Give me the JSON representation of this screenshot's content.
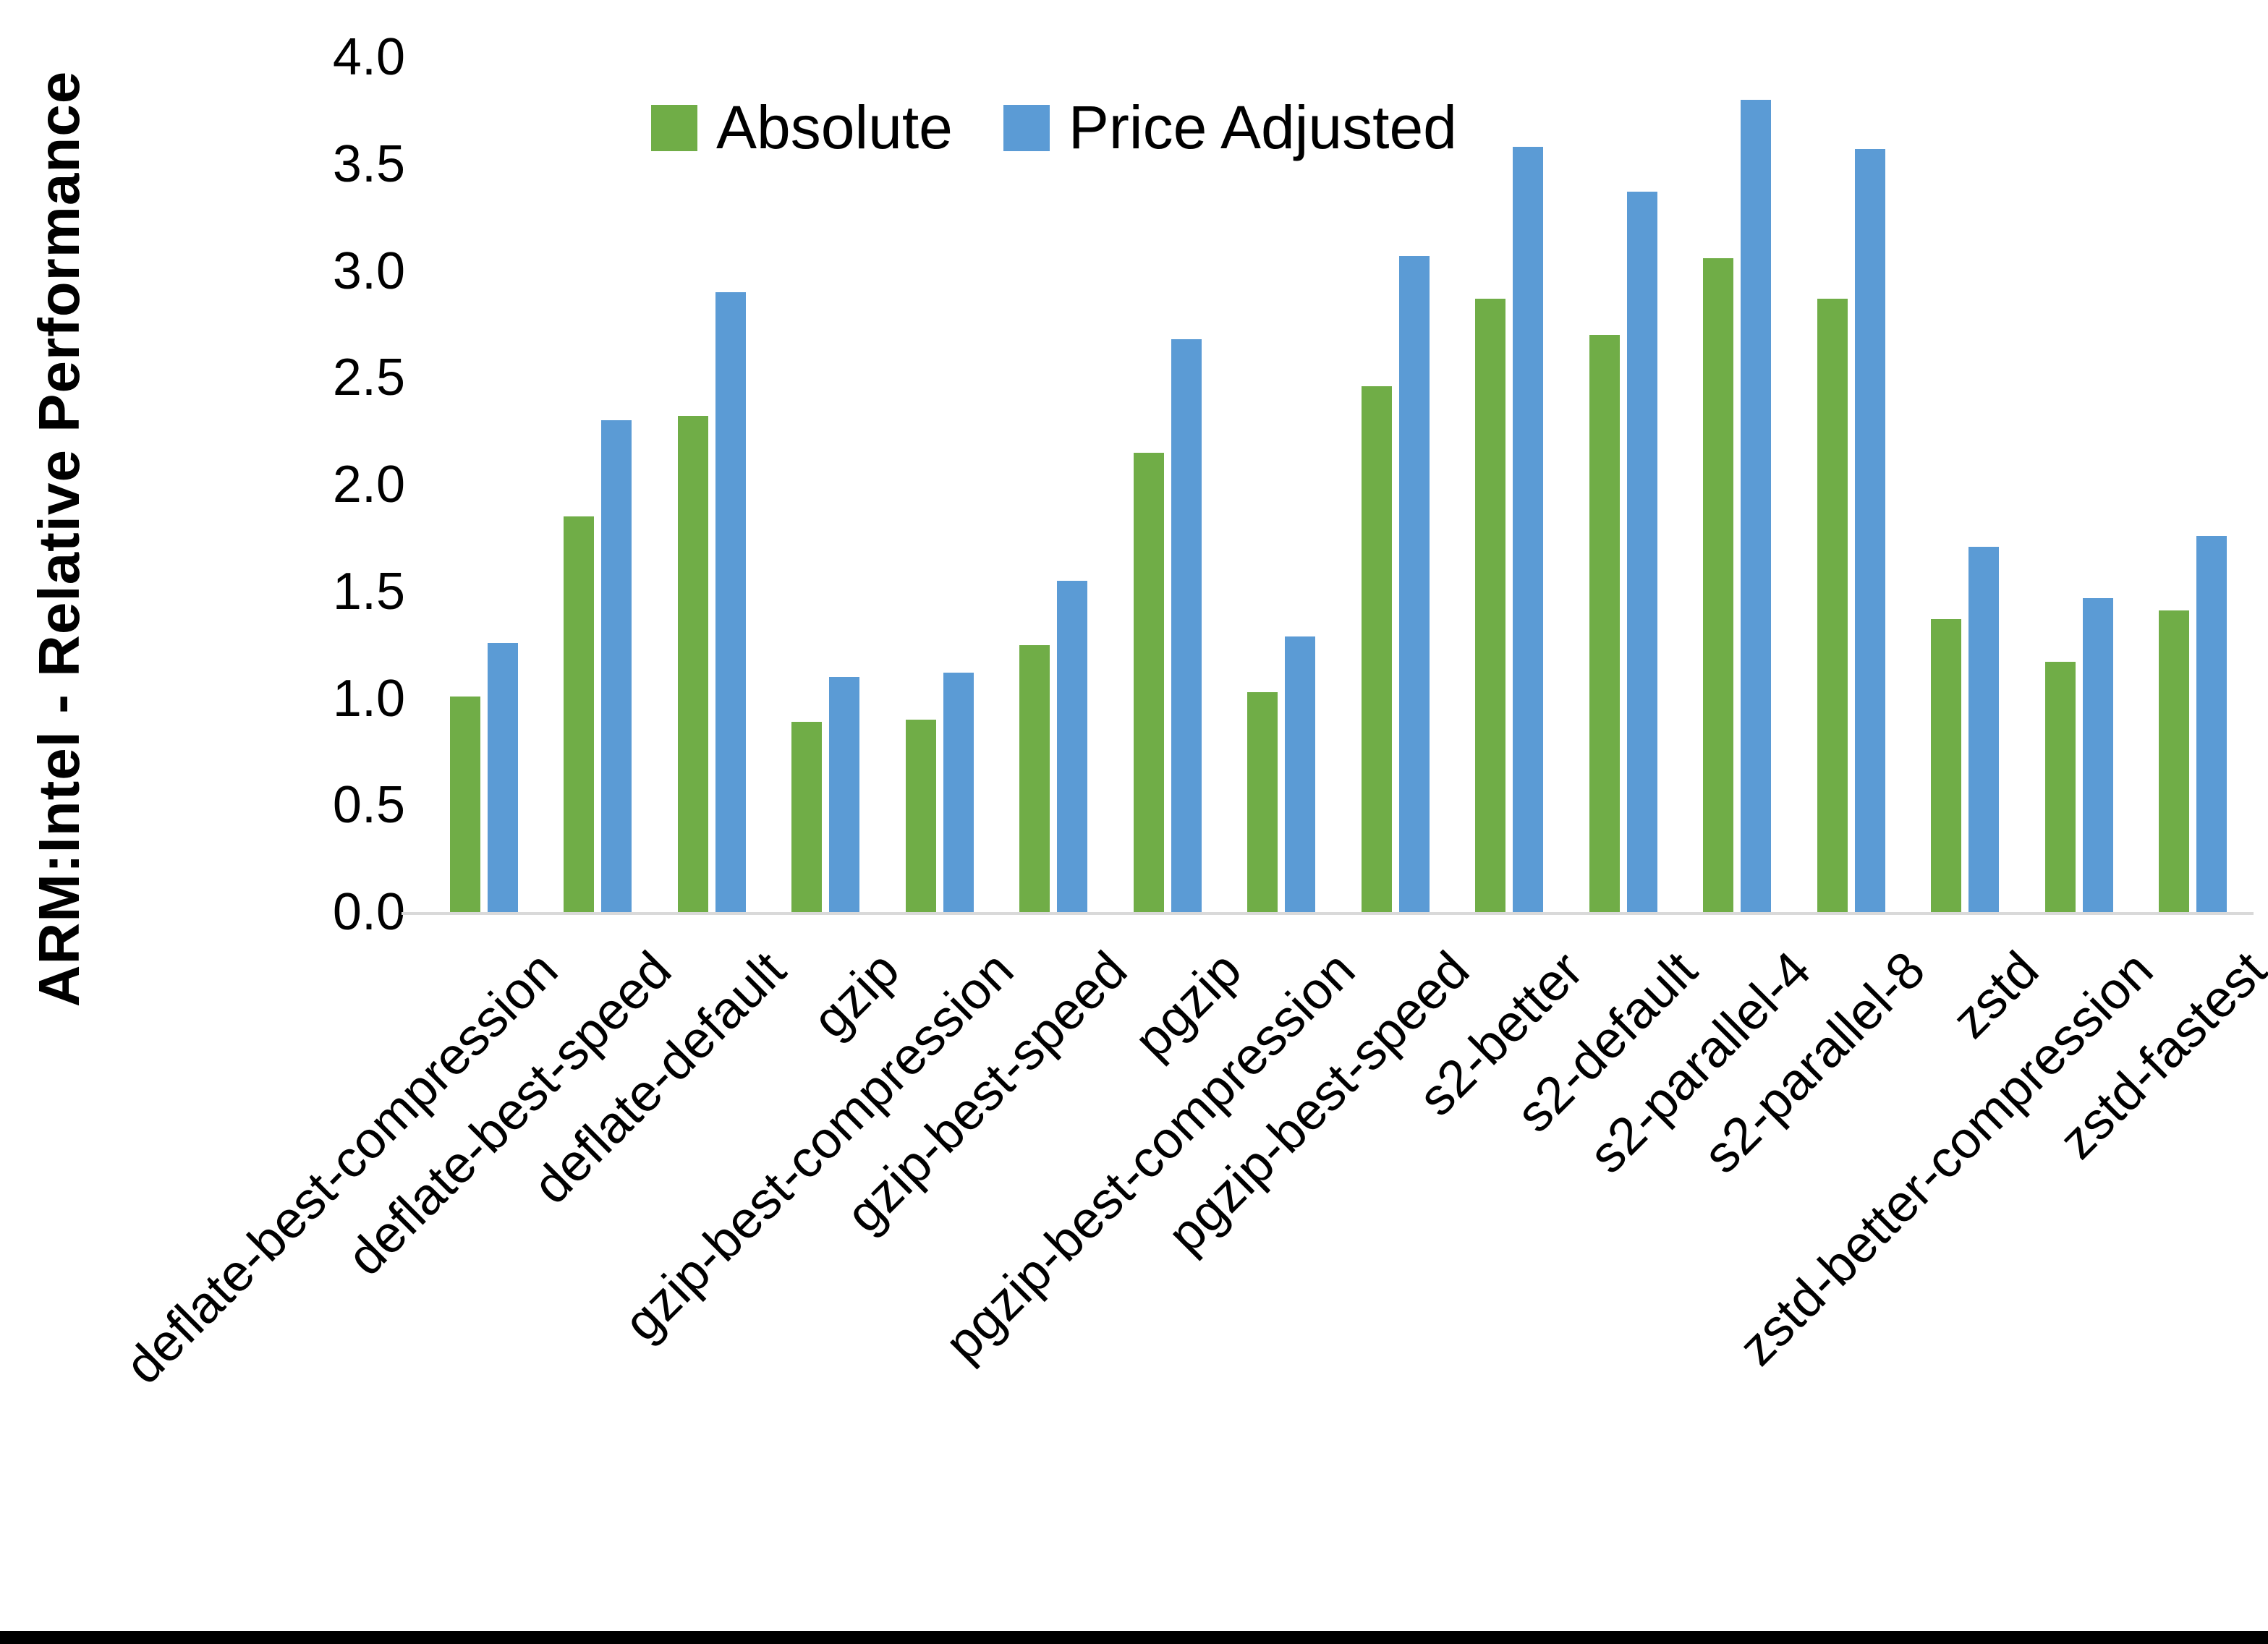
{
  "chart_data": {
    "type": "bar",
    "title": "",
    "ylabel": "ARM:Intel - Relative Performance",
    "xlabel": "",
    "ylim": [
      0.0,
      4.0
    ],
    "y_tick_step": 0.5,
    "y_ticks": [
      "0.0",
      "0.5",
      "1.0",
      "1.5",
      "2.0",
      "2.5",
      "3.0",
      "3.5",
      "4.0"
    ],
    "grid": false,
    "legend_position": "top-center",
    "categories": [
      "deflate-best-compression",
      "deflate-best-speed",
      "deflate-default",
      "gzip",
      "gzip-best-compression",
      "gzip-best-speed",
      "pgzip",
      "pgzip-best-compression",
      "pgzip-best-speed",
      "s2-better",
      "s2-default",
      "s2-parallel-4",
      "s2-parallel-8",
      "zstd",
      "zstd-better-compression",
      "zstd-fastest"
    ],
    "series": [
      {
        "name": "Absolute",
        "color": "#70AD47",
        "values": [
          1.01,
          1.85,
          2.32,
          0.89,
          0.9,
          1.25,
          2.15,
          1.03,
          2.46,
          2.87,
          2.7,
          3.06,
          2.87,
          1.37,
          1.17,
          1.41
        ]
      },
      {
        "name": "Price Adjusted",
        "color": "#5B9BD5",
        "values": [
          1.26,
          2.3,
          2.9,
          1.1,
          1.12,
          1.55,
          2.68,
          1.29,
          3.07,
          3.58,
          3.37,
          3.8,
          3.57,
          1.71,
          1.47,
          1.76
        ]
      }
    ],
    "axis_line_color": "#D9D9D9",
    "text_color": "#000000",
    "background": "#FFFFFF"
  }
}
